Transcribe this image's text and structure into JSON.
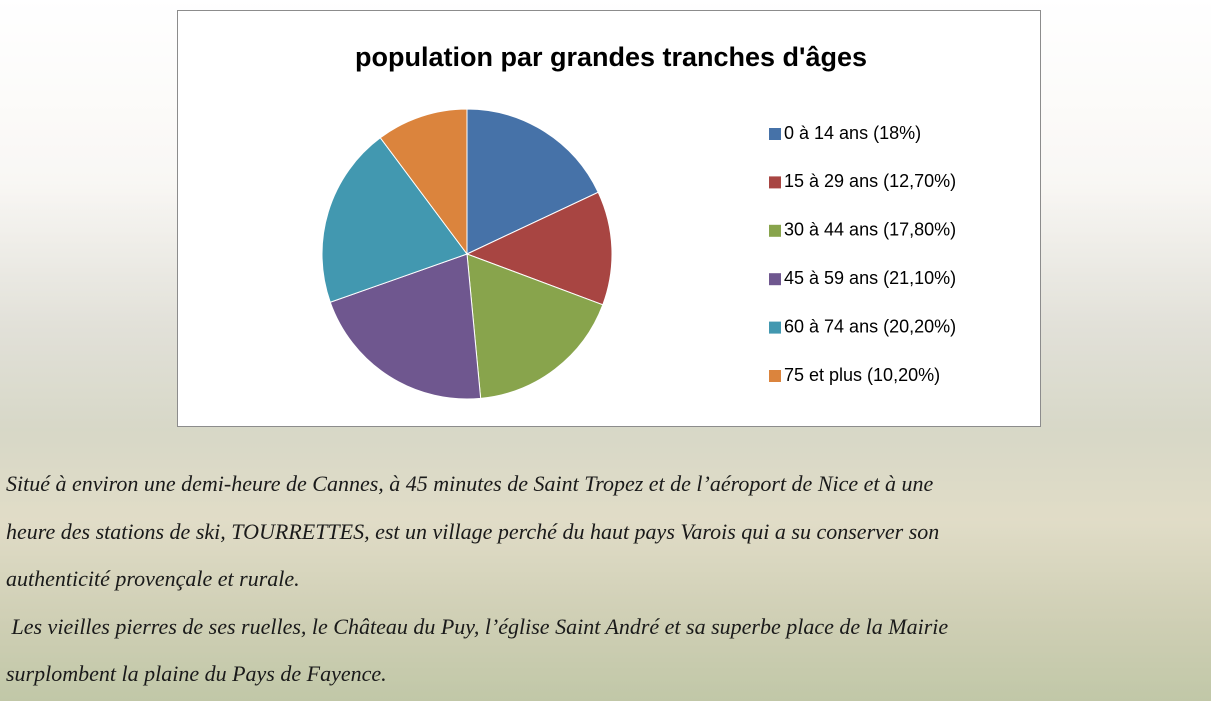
{
  "chart_data": {
    "type": "pie",
    "title": "population par grandes tranches d'âges",
    "categories": [
      "0 à 14 ans (18%)",
      "15 à 29 ans (12,70%)",
      "30 à 44 ans (17,80%)",
      "45 à 59 ans (21,10%)",
      "60 à 74 ans (20,20%)",
      "75 et plus (10,20%)"
    ],
    "values": [
      18,
      12.7,
      17.8,
      21.1,
      20.2,
      10.2
    ],
    "colors": [
      "#4672a8",
      "#a84542",
      "#88a44c",
      "#6f578f",
      "#4298b0",
      "#db843d"
    ],
    "legend": "right"
  },
  "text": {
    "lines": [
      "Situé à environ une demi-heure de Cannes, à 45 minutes de Saint Tropez et de l’aéroport de Nice et à une",
      "heure des stations de ski, TOURRETTES, est un village perché du haut pays Varois qui a su conserver son",
      "authenticité provençale et rurale.",
      " Les vieilles pierres de ses ruelles, le Château du Puy, l’église Saint André et sa superbe place de la Mairie",
      "surplombent la plaine du Pays de Fayence."
    ]
  }
}
